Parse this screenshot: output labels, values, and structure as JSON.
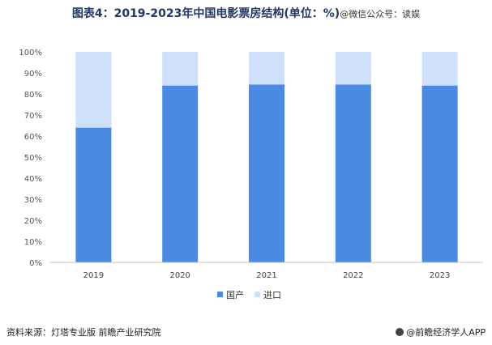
{
  "title": "图表4：2019-2023年中国电影票房结构(单位：%)",
  "title_watermark": "@微信公众号：读娱",
  "source": "资料来源：灯塔专业版 前瞻产业研究院",
  "brand": "@前瞻经济学人APP",
  "chart_data": {
    "type": "bar",
    "stacked": true,
    "categories": [
      "2019",
      "2020",
      "2021",
      "2022",
      "2023"
    ],
    "series": [
      {
        "name": "国产",
        "values": [
          64,
          84,
          84.5,
          84.5,
          84
        ],
        "color": "#4a8ae3"
      },
      {
        "name": "进口",
        "values": [
          36,
          16,
          15.5,
          15.5,
          16
        ],
        "color": "#cfe0fb"
      }
    ],
    "ylim": [
      0,
      100
    ],
    "yticks": [
      "0%",
      "10%",
      "20%",
      "30%",
      "40%",
      "50%",
      "60%",
      "70%",
      "80%",
      "90%",
      "100%"
    ],
    "grid": false,
    "legend": "bottom"
  }
}
